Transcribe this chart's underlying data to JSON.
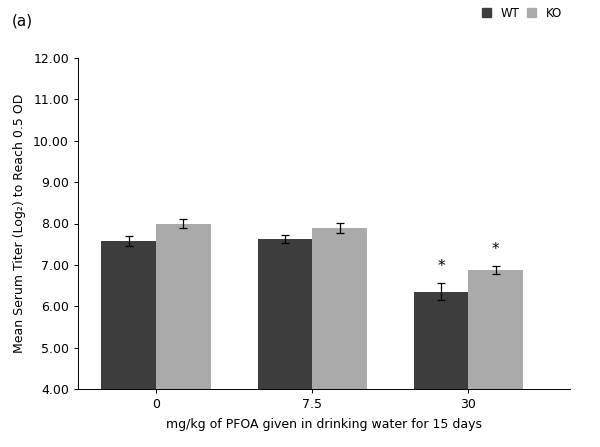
{
  "groups": [
    "0",
    "7.5",
    "30"
  ],
  "wt_values": [
    7.57,
    7.63,
    6.35
  ],
  "ko_values": [
    8.0,
    7.9,
    6.88
  ],
  "wt_errors": [
    0.12,
    0.1,
    0.2
  ],
  "ko_errors": [
    0.1,
    0.12,
    0.1
  ],
  "wt_color": "#3d3d3d",
  "ko_color": "#aaaaaa",
  "ylim": [
    4.0,
    12.0
  ],
  "yticks": [
    4.0,
    5.0,
    6.0,
    7.0,
    8.0,
    9.0,
    10.0,
    11.0,
    12.0
  ],
  "ylabel": "Mean Serum Titer (Log₂) to Reach 0.5 OD",
  "xlabel": "mg/kg of PFOA given in drinking water for 15 days",
  "panel_label": "(a)",
  "legend_labels": [
    "WT",
    "KO"
  ],
  "bar_width": 0.35,
  "group_positions": [
    1.0,
    2.0,
    3.0
  ],
  "significance_wt": [
    false,
    false,
    true
  ],
  "significance_ko": [
    false,
    false,
    true
  ]
}
